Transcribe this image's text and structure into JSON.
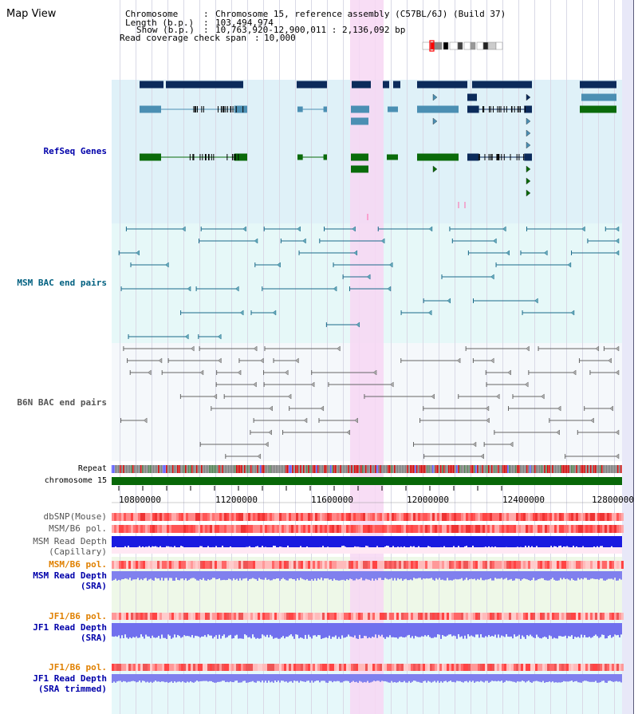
{
  "view": {
    "title": "Map View"
  },
  "header": {
    "chromosome_label": "Chromosome",
    "chromosome_value": "Chromosome 15, reference assembly (C57BL/6J) (Build 37)",
    "length_label": "Length (b.p.)",
    "length_value": "103,494,974",
    "show_label": "Show (b.p.)",
    "show_value": "10,763,920-12,900,011 : 2,136,092 bp",
    "coverage_label": "Read coverage check span",
    "coverage_value": "10,000"
  },
  "tracks": {
    "refseq": "RefSeq Genes",
    "msm_bac": "MSM BAC end pairs",
    "b6n_bac": "B6N BAC end pairs",
    "repeat": "Repeat",
    "chromosome": "chromosome 15",
    "dbsnp": "dbSNP(Mouse)",
    "msm_b6_pol_1": "MSM/B6 pol.",
    "msm_depth_cap_1": "MSM Read Depth",
    "msm_depth_cap_2": "(Capillary)",
    "msm_b6_pol_2": "MSM/B6 pol.",
    "msm_depth_sra_1": "MSM Read Depth",
    "msm_depth_sra_2": "(SRA)",
    "jf1_b6_pol_1": "JF1/B6 pol.",
    "jf1_depth_sra_1": "JF1 Read Depth",
    "jf1_depth_sra_2": "(SRA)",
    "jf1_b6_pol_2": "JF1/B6 pol.",
    "jf1_depth_trim_1": "JF1 Read Depth",
    "jf1_depth_trim_2": "(SRA trimmed)"
  },
  "axis": {
    "ticks": [
      "10800000",
      "11200000",
      "11600000",
      "12000000",
      "12400000",
      "12800000"
    ]
  },
  "colors": {
    "refseq_bg": "#dff1f8",
    "msm_bg": "#e6f8f8",
    "b6n_bg": "#f5f8fb",
    "highlight": "#f7d7f3",
    "gene_dark": "#0c2b5b",
    "gene_mid": "#4b8fb3",
    "gene_green": "#0a6b0a",
    "chromosome_bar": "#086808",
    "msm_pair": "#1b6a8a",
    "b6n_pair": "#666666",
    "refseq_label": "#0000aa",
    "msm_label": "#006080",
    "b6n_label": "#555555",
    "orange_label": "#e08000",
    "blue_label": "#0000aa"
  }
}
